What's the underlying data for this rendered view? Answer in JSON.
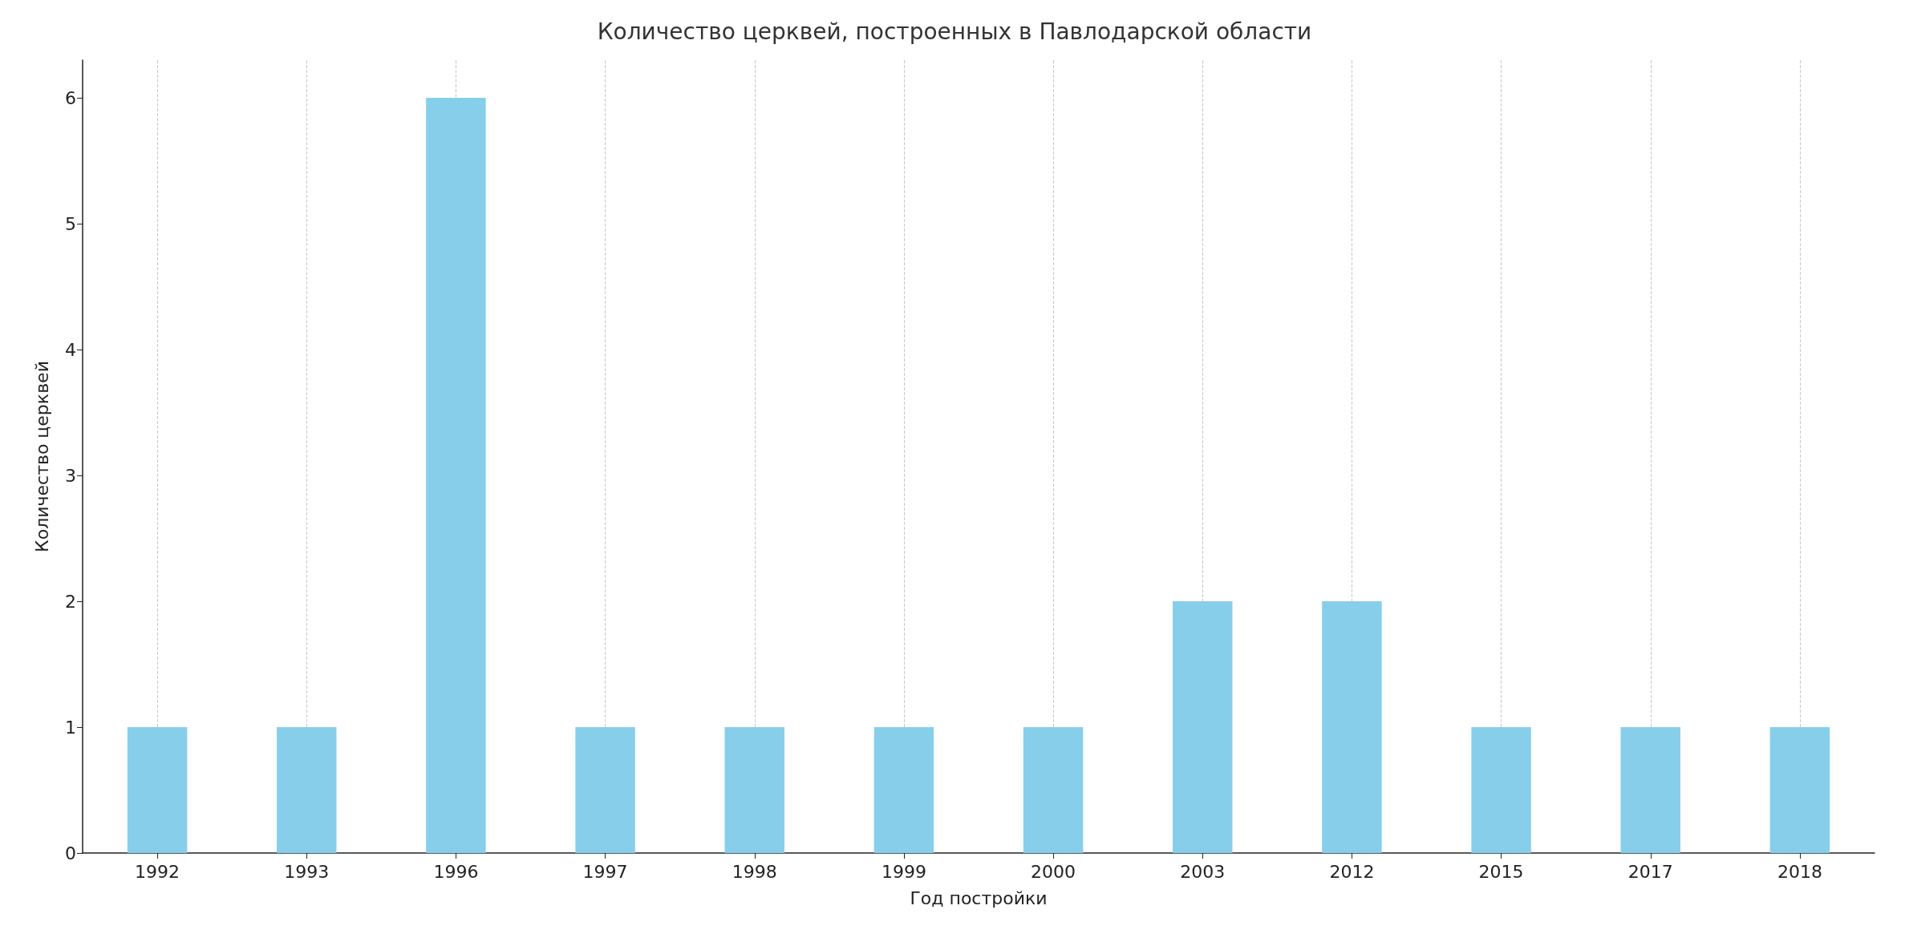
{
  "chart_data": {
    "type": "bar",
    "title": "Количество церквей, построенных в Павлодарской области",
    "xlabel": "Год постройки",
    "ylabel": "Количество церквей",
    "categories": [
      "1992",
      "1993",
      "1996",
      "1997",
      "1998",
      "1999",
      "2000",
      "2003",
      "2012",
      "2015",
      "2017",
      "2018"
    ],
    "values": [
      1,
      1,
      6,
      1,
      1,
      1,
      1,
      2,
      2,
      1,
      1,
      1
    ],
    "color": "#87ceeb",
    "ylim": [
      0,
      6.3
    ],
    "yticks": [
      0,
      1,
      2,
      3,
      4,
      5,
      6
    ],
    "grid": "x"
  }
}
